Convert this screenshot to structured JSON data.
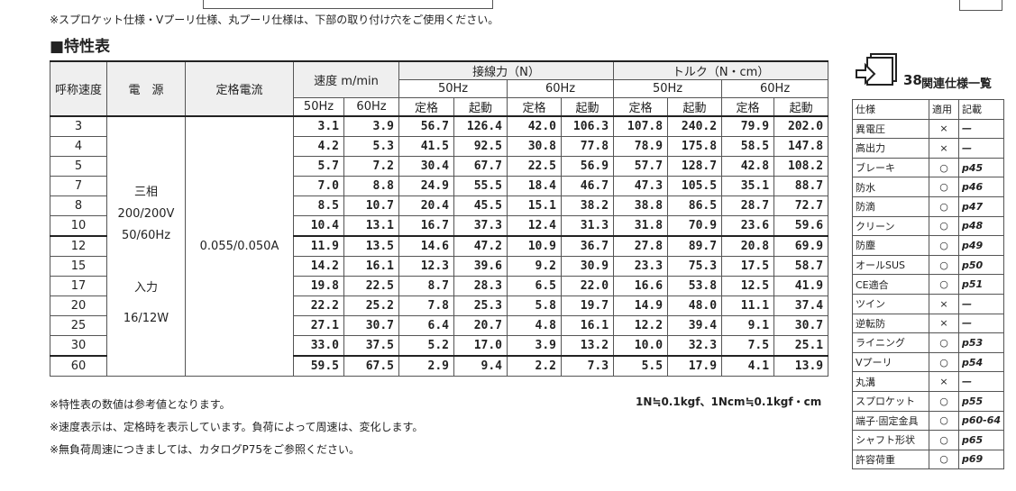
{
  "top_note": "※スプロケット仕様・Vプーリ仕様、丸プーリ仕様は、下部の取り付け穴をご使用ください。",
  "section_title": "■特性表",
  "table": {
    "headers": {
      "speed_name": "呼称速度",
      "power": "電　源",
      "current": "定格電流",
      "speed": "速度 m/min",
      "tangential": "接線力（N）",
      "torque": "トルク（N・cm）",
      "freq": [
        "50Hz",
        "60Hz",
        "50Hz",
        "60Hz"
      ],
      "speed_freq": [
        "50Hz",
        "60Hz"
      ],
      "sub": [
        "定格",
        "起動",
        "定格",
        "起動",
        "定格",
        "起動",
        "定格",
        "起動"
      ]
    },
    "power": [
      "三相",
      "200/200V",
      "50/60Hz",
      "入力",
      "16/12W"
    ],
    "current": "0.055/0.050A",
    "rows": [
      [
        "3",
        "3.1",
        "3.9",
        "56.7",
        "126.4",
        "42.0",
        "106.3",
        "107.8",
        "240.2",
        "79.9",
        "202.0"
      ],
      [
        "4",
        "4.2",
        "5.3",
        "41.5",
        "92.5",
        "30.8",
        "77.8",
        "78.9",
        "175.8",
        "58.5",
        "147.8"
      ],
      [
        "5",
        "5.7",
        "7.2",
        "30.4",
        "67.7",
        "22.5",
        "56.9",
        "57.7",
        "128.7",
        "42.8",
        "108.2"
      ],
      [
        "7",
        "7.0",
        "8.8",
        "24.9",
        "55.5",
        "18.4",
        "46.7",
        "47.3",
        "105.5",
        "35.1",
        "88.7"
      ],
      [
        "8",
        "8.5",
        "10.7",
        "20.4",
        "45.5",
        "15.1",
        "38.2",
        "38.8",
        "86.5",
        "28.7",
        "72.7"
      ],
      [
        "10",
        "10.4",
        "13.1",
        "16.7",
        "37.3",
        "12.4",
        "31.3",
        "31.8",
        "70.9",
        "23.6",
        "59.6"
      ],
      [
        "12",
        "11.9",
        "13.5",
        "14.6",
        "47.2",
        "10.9",
        "36.7",
        "27.8",
        "89.7",
        "20.8",
        "69.9"
      ],
      [
        "15",
        "14.2",
        "16.1",
        "12.3",
        "39.6",
        "9.2",
        "30.9",
        "23.3",
        "75.3",
        "17.5",
        "58.7"
      ],
      [
        "17",
        "19.8",
        "22.5",
        "8.7",
        "28.3",
        "6.5",
        "22.0",
        "16.6",
        "53.8",
        "12.5",
        "41.9"
      ],
      [
        "20",
        "22.2",
        "25.2",
        "7.8",
        "25.3",
        "5.8",
        "19.7",
        "14.9",
        "48.0",
        "11.1",
        "37.4"
      ],
      [
        "25",
        "27.1",
        "30.7",
        "6.4",
        "20.7",
        "4.8",
        "16.1",
        "12.2",
        "39.4",
        "9.1",
        "30.7"
      ],
      [
        "30",
        "33.0",
        "37.5",
        "5.2",
        "17.0",
        "3.9",
        "13.2",
        "10.0",
        "32.3",
        "7.5",
        "25.1"
      ],
      [
        "60",
        "59.5",
        "67.5",
        "2.9",
        "9.4",
        "2.2",
        "7.3",
        "5.5",
        "17.9",
        "4.1",
        "13.9"
      ]
    ]
  },
  "notes": [
    "※特性表の数値は参考値となります。",
    "※速度表示は、定格時を表示しています。負荷によって周速は、変化します。",
    "※無負荷周速につきましては、カタログP75をご参照ください。"
  ],
  "unit_note": "1N≒0.1kgf、1Ncm≒0.1kgf・cm",
  "side": {
    "number": "38",
    "title": "関連仕様一覧",
    "headers": [
      "仕様",
      "適用",
      "記載"
    ],
    "rows": [
      [
        "異電圧",
        "×",
        "—"
      ],
      [
        "高出力",
        "×",
        "—"
      ],
      [
        "ブレーキ",
        "○",
        "p45"
      ],
      [
        "防水",
        "○",
        "p46"
      ],
      [
        "防滴",
        "○",
        "p47"
      ],
      [
        "クリーン",
        "○",
        "p48"
      ],
      [
        "防塵",
        "○",
        "p49"
      ],
      [
        "オールSUS",
        "○",
        "p50"
      ],
      [
        "CE適合",
        "○",
        "p51"
      ],
      [
        "ツイン",
        "×",
        "—"
      ],
      [
        "逆転防",
        "×",
        "—"
      ],
      [
        "ライニング",
        "○",
        "p53"
      ],
      [
        "Vプーリ",
        "○",
        "p54"
      ],
      [
        "丸溝",
        "×",
        "—"
      ],
      [
        "スプロケット",
        "○",
        "p55"
      ],
      [
        "端子·固定金具",
        "○",
        "p60-64"
      ],
      [
        "シャフト形状",
        "○",
        "p65"
      ],
      [
        "許容荷重",
        "○",
        "p69"
      ]
    ]
  }
}
